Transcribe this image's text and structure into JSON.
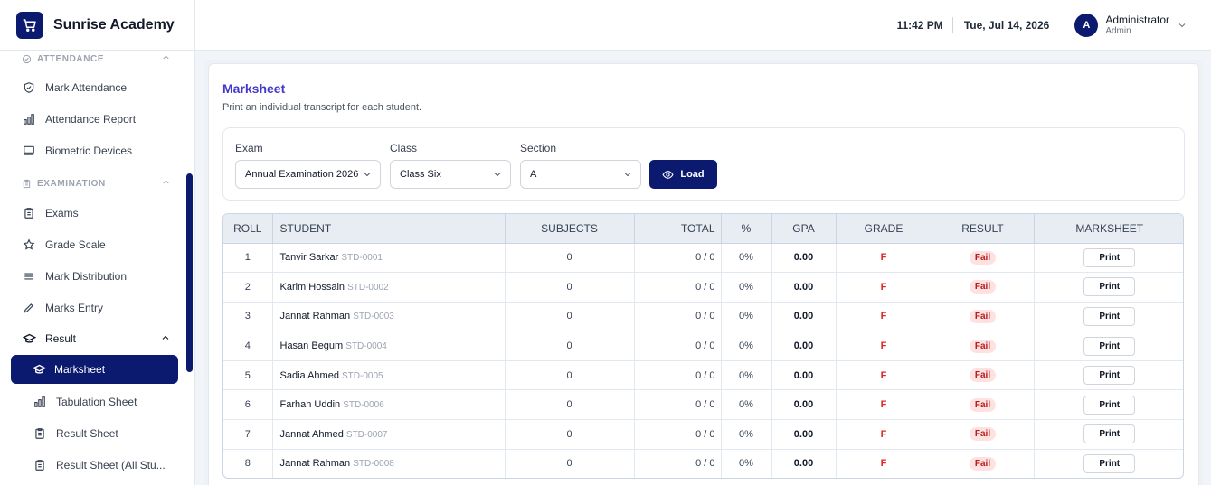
{
  "brand": {
    "name": "Sunrise Academy"
  },
  "header": {
    "time": "11:42 PM",
    "date": "Tue, Jul 14, 2026",
    "avatar_initial": "A",
    "user_name": "Administrator",
    "user_role": "Admin"
  },
  "sidebar": {
    "attendance_section": "ATTENDANCE",
    "attendance_items": [
      {
        "label": "Mark Attendance",
        "icon": "shield-check-icon"
      },
      {
        "label": "Attendance Report",
        "icon": "bar-chart-icon"
      },
      {
        "label": "Biometric Devices",
        "icon": "monitor-icon"
      }
    ],
    "examination_section": "EXAMINATION",
    "examination_items": [
      {
        "label": "Exams",
        "icon": "clipboard-icon"
      },
      {
        "label": "Grade Scale",
        "icon": "star-icon"
      },
      {
        "label": "Mark Distribution",
        "icon": "list-icon"
      },
      {
        "label": "Marks Entry",
        "icon": "pencil-icon"
      }
    ],
    "result_group": "Result",
    "result_items": [
      {
        "label": "Marksheet",
        "icon": "graduation-cap-icon",
        "active": true
      },
      {
        "label": "Tabulation Sheet",
        "icon": "bar-chart-icon"
      },
      {
        "label": "Result Sheet",
        "icon": "clipboard-icon"
      },
      {
        "label": "Result Sheet (All Stu...",
        "icon": "clipboard-icon"
      }
    ]
  },
  "page": {
    "title": "Marksheet",
    "subtitle": "Print an individual transcript for each student."
  },
  "filters": {
    "exam_label": "Exam",
    "exam_value": "Annual Examination 2026",
    "class_label": "Class",
    "class_value": "Class Six",
    "section_label": "Section",
    "section_value": "A",
    "load_label": "Load"
  },
  "table": {
    "headers": [
      "ROLL",
      "STUDENT",
      "SUBJECTS",
      "TOTAL",
      "%",
      "GPA",
      "GRADE",
      "RESULT",
      "MARKSHEET"
    ],
    "rows": [
      {
        "roll": "1",
        "name": "Tanvir Sarkar",
        "id": "STD-0001",
        "subjects": "0",
        "total": "0 / 0",
        "pct": "0%",
        "gpa": "0.00",
        "grade": "F",
        "result": "Fail",
        "action": "Print"
      },
      {
        "roll": "2",
        "name": "Karim Hossain",
        "id": "STD-0002",
        "subjects": "0",
        "total": "0 / 0",
        "pct": "0%",
        "gpa": "0.00",
        "grade": "F",
        "result": "Fail",
        "action": "Print"
      },
      {
        "roll": "3",
        "name": "Jannat Rahman",
        "id": "STD-0003",
        "subjects": "0",
        "total": "0 / 0",
        "pct": "0%",
        "gpa": "0.00",
        "grade": "F",
        "result": "Fail",
        "action": "Print"
      },
      {
        "roll": "4",
        "name": "Hasan Begum",
        "id": "STD-0004",
        "subjects": "0",
        "total": "0 / 0",
        "pct": "0%",
        "gpa": "0.00",
        "grade": "F",
        "result": "Fail",
        "action": "Print"
      },
      {
        "roll": "5",
        "name": "Sadia Ahmed",
        "id": "STD-0005",
        "subjects": "0",
        "total": "0 / 0",
        "pct": "0%",
        "gpa": "0.00",
        "grade": "F",
        "result": "Fail",
        "action": "Print"
      },
      {
        "roll": "6",
        "name": "Farhan Uddin",
        "id": "STD-0006",
        "subjects": "0",
        "total": "0 / 0",
        "pct": "0%",
        "gpa": "0.00",
        "grade": "F",
        "result": "Fail",
        "action": "Print"
      },
      {
        "roll": "7",
        "name": "Jannat Ahmed",
        "id": "STD-0007",
        "subjects": "0",
        "total": "0 / 0",
        "pct": "0%",
        "gpa": "0.00",
        "grade": "F",
        "result": "Fail",
        "action": "Print"
      },
      {
        "roll": "8",
        "name": "Jannat Rahman",
        "id": "STD-0008",
        "subjects": "0",
        "total": "0 / 0",
        "pct": "0%",
        "gpa": "0.00",
        "grade": "F",
        "result": "Fail",
        "action": "Print"
      }
    ]
  },
  "colors": {
    "primary": "#0b1a6e",
    "title": "#4338ca",
    "fail": "#dc2626"
  }
}
